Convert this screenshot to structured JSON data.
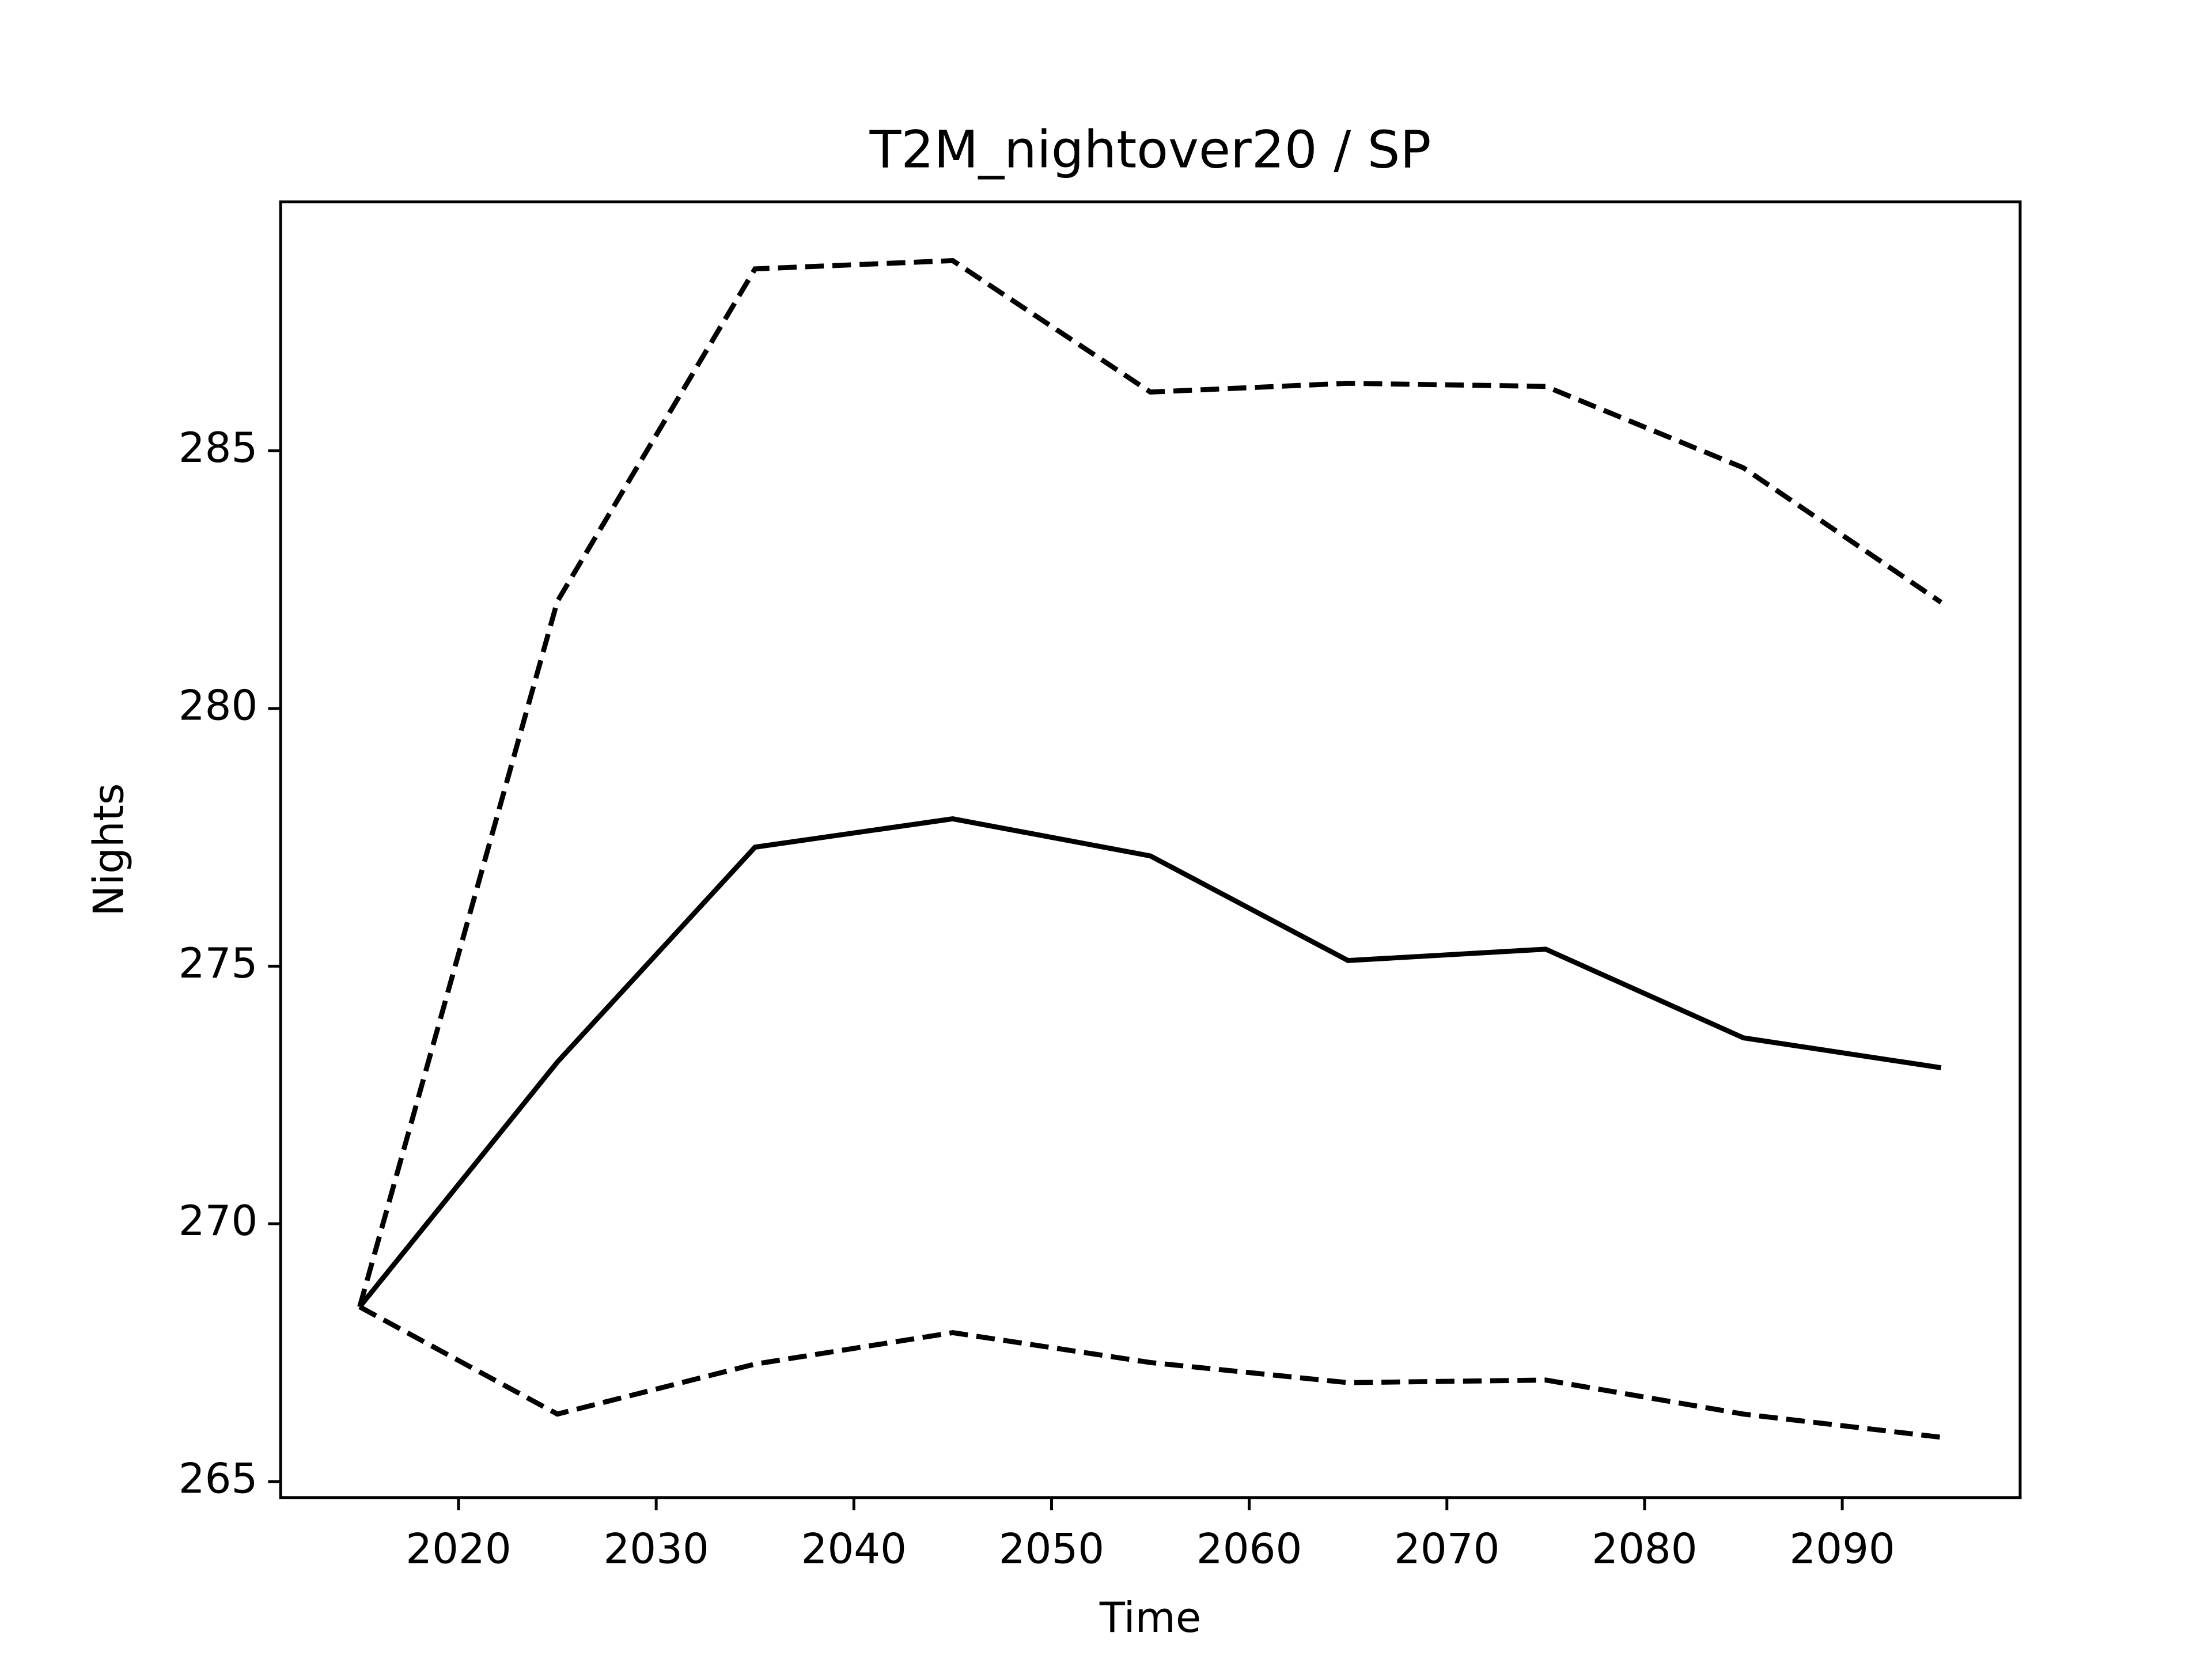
{
  "chart_data": {
    "type": "line",
    "title": "T2M_nightover20 / SP",
    "x_label": "Time",
    "y_label": "Nights",
    "x": [
      2015,
      2025,
      2035,
      2045,
      2055,
      2065,
      2075,
      2085,
      2095
    ],
    "series": [
      {
        "color": "#000000",
        "linestyle": "solid",
        "values": [
          268.39,
          273.14,
          277.31,
          277.86,
          277.14,
          275.11,
          275.33,
          273.61,
          273.03
        ]
      },
      {
        "color": "#000000",
        "linestyle": "dashed",
        "values": [
          268.39,
          282.08,
          288.53,
          288.69,
          286.14,
          286.31,
          286.25,
          284.67,
          282.06
        ]
      },
      {
        "color": "#000000",
        "linestyle": "dashed",
        "values": [
          268.39,
          266.31,
          267.28,
          267.89,
          267.31,
          266.92,
          266.97,
          266.31,
          265.86
        ]
      }
    ],
    "xlim": [
      2011,
      2099
    ],
    "xticks": [
      2020,
      2030,
      2040,
      2050,
      2060,
      2070,
      2080,
      2090
    ],
    "ylim": [
      264.69,
      289.83
    ],
    "yticks": [
      265,
      270,
      275,
      280,
      285
    ],
    "grid": false
  }
}
